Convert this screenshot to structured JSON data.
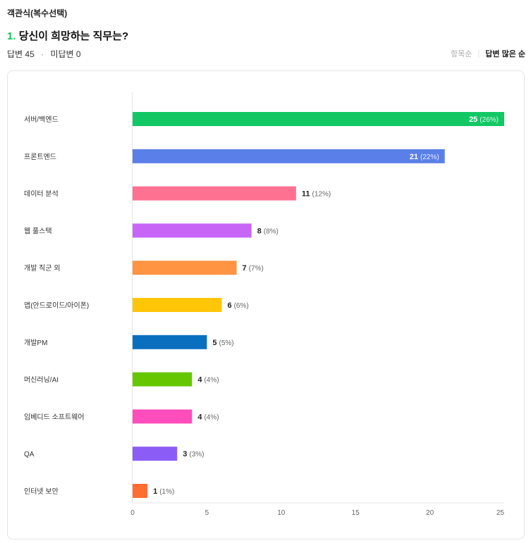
{
  "question": {
    "type_label": "객관식(복수선택)",
    "number": "1.",
    "title": "당신이 희망하는 직무는?"
  },
  "stats": {
    "answered": "답변 45",
    "separator": "·",
    "unanswered": "미답변 0"
  },
  "sort": {
    "options": [
      "항목순",
      "답변 많은 순"
    ],
    "active": "답변 많은 순"
  },
  "chart_data": {
    "type": "bar",
    "orientation": "horizontal",
    "categories": [
      "서버/백엔드",
      "프론트엔드",
      "데이터 분석",
      "웹 풀스택",
      "개발 직군 외",
      "앱(안드로이드/아이폰)",
      "개발PM",
      "머신러닝/AI",
      "임베디드 소프트웨어",
      "QA",
      "인터넷 보안"
    ],
    "values": [
      25,
      21,
      11,
      8,
      7,
      6,
      5,
      4,
      4,
      3,
      1
    ],
    "percent_labels": [
      "(26%)",
      "(22%)",
      "(12%)",
      "(8%)",
      "(7%)",
      "(6%)",
      "(5%)",
      "(4%)",
      "(4%)",
      "(3%)",
      "(1%)"
    ],
    "colors": [
      "#12c865",
      "#5b7fe8",
      "#ff7191",
      "#c766f6",
      "#ff9442",
      "#ffc608",
      "#0b6fbf",
      "#66c700",
      "#ff4dbc",
      "#8b5cf6",
      "#ff6d33"
    ],
    "xlim": [
      0,
      25
    ],
    "xticks": [
      0,
      5,
      10,
      15,
      20,
      25
    ],
    "grid": false
  }
}
